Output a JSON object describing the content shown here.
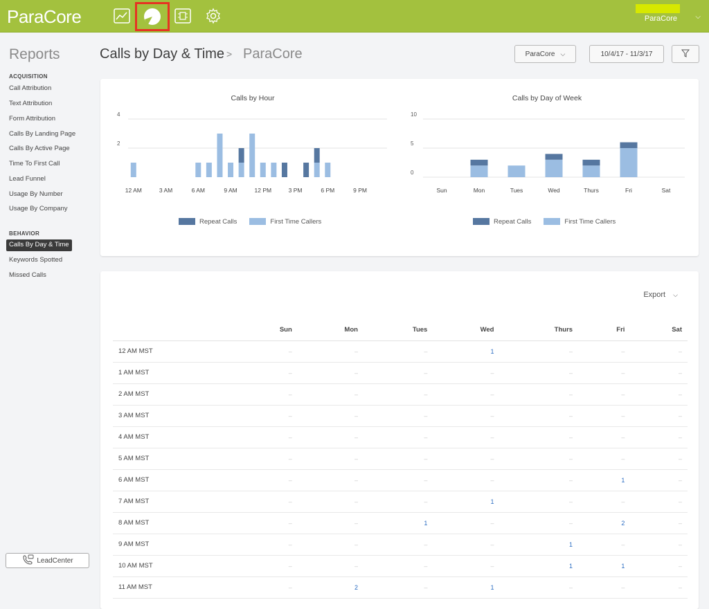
{
  "topbar": {
    "logo": "ParaCore",
    "icons": [
      "chart-line-icon",
      "pie-chart-icon",
      "scripts-icon",
      "gear-icon"
    ],
    "account_name": "ParaCore",
    "accent": "#a3c13e"
  },
  "sidebar": {
    "title": "Reports",
    "sections": [
      {
        "label": "ACQUISITION",
        "items": [
          "Call Attribution",
          "Text Attribution",
          "Form Attribution",
          "Calls By Landing Page",
          "Calls By Active Page",
          "Time To First Call",
          "Lead Funnel",
          "Usage By Number",
          "Usage By Company"
        ]
      },
      {
        "label": "BEHAVIOR",
        "items": [
          "Calls By Day & Time",
          "Keywords Spotted",
          "Missed Calls"
        ]
      }
    ],
    "active_item": "Calls By Day & Time",
    "leadcenter_label": "LeadCenter"
  },
  "header": {
    "title": "Calls by Day & Time",
    "separator": ">",
    "crumb": "ParaCore",
    "company_select": "ParaCore",
    "date_range": "10/4/17 - 11/3/17"
  },
  "colors": {
    "repeat": "#5677a0",
    "first": "#9bbde2",
    "link": "#2a6cc2"
  },
  "chart_data": [
    {
      "type": "bar",
      "title": "Calls by Hour",
      "stacked": true,
      "x_tick_labels": [
        "12 AM",
        "3 AM",
        "6 AM",
        "9 AM",
        "12 PM",
        "3 PM",
        "6 PM",
        "9 PM"
      ],
      "yticks": [
        2,
        4
      ],
      "ylim": [
        0,
        4
      ],
      "categories": [
        "12 AM",
        "1 AM",
        "2 AM",
        "3 AM",
        "4 AM",
        "5 AM",
        "6 AM",
        "7 AM",
        "8 AM",
        "9 AM",
        "10 AM",
        "11 AM",
        "12 PM",
        "1 PM",
        "2 PM",
        "3 PM",
        "4 PM",
        "5 PM",
        "6 PM",
        "7 PM",
        "8 PM",
        "9 PM",
        "10 PM",
        "11 PM"
      ],
      "series": [
        {
          "name": "Repeat Calls",
          "values": [
            0,
            0,
            0,
            0,
            0,
            0,
            0,
            0,
            0,
            0,
            1,
            0,
            0,
            0,
            1,
            0,
            1,
            1,
            0,
            0,
            0,
            0,
            0,
            0
          ]
        },
        {
          "name": "First Time Callers",
          "values": [
            1,
            0,
            0,
            0,
            0,
            0,
            1,
            1,
            3,
            1,
            1,
            3,
            1,
            1,
            0,
            0,
            0,
            1,
            1,
            0,
            0,
            0,
            0,
            0
          ]
        }
      ]
    },
    {
      "type": "bar",
      "title": "Calls by Day of Week",
      "stacked": true,
      "categories": [
        "Sun",
        "Mon",
        "Tues",
        "Wed",
        "Thurs",
        "Fri",
        "Sat"
      ],
      "yticks": [
        0,
        5,
        10
      ],
      "ylim": [
        0,
        10
      ],
      "series": [
        {
          "name": "Repeat Calls",
          "values": [
            0,
            1,
            0,
            1,
            1,
            1,
            0
          ]
        },
        {
          "name": "First Time Callers",
          "values": [
            0,
            2,
            2,
            3,
            2,
            5,
            0
          ]
        }
      ]
    }
  ],
  "table": {
    "export_label": "Export",
    "columns": [
      "",
      "Sun",
      "Mon",
      "Tues",
      "Wed",
      "Thurs",
      "Fri",
      "Sat"
    ],
    "empty": "–",
    "rows": [
      {
        "label": "12 AM MST",
        "cells": [
          "–",
          "–",
          "–",
          "1",
          "–",
          "–",
          "–"
        ]
      },
      {
        "label": "1 AM MST",
        "cells": [
          "–",
          "–",
          "–",
          "–",
          "–",
          "–",
          "–"
        ]
      },
      {
        "label": "2 AM MST",
        "cells": [
          "–",
          "–",
          "–",
          "–",
          "–",
          "–",
          "–"
        ]
      },
      {
        "label": "3 AM MST",
        "cells": [
          "–",
          "–",
          "–",
          "–",
          "–",
          "–",
          "–"
        ]
      },
      {
        "label": "4 AM MST",
        "cells": [
          "–",
          "–",
          "–",
          "–",
          "–",
          "–",
          "–"
        ]
      },
      {
        "label": "5 AM MST",
        "cells": [
          "–",
          "–",
          "–",
          "–",
          "–",
          "–",
          "–"
        ]
      },
      {
        "label": "6 AM MST",
        "cells": [
          "–",
          "–",
          "–",
          "–",
          "–",
          "1",
          "–"
        ]
      },
      {
        "label": "7 AM MST",
        "cells": [
          "–",
          "–",
          "–",
          "1",
          "–",
          "–",
          "–"
        ]
      },
      {
        "label": "8 AM MST",
        "cells": [
          "–",
          "–",
          "1",
          "–",
          "–",
          "2",
          "–"
        ]
      },
      {
        "label": "9 AM MST",
        "cells": [
          "–",
          "–",
          "–",
          "–",
          "1",
          "–",
          "–"
        ]
      },
      {
        "label": "10 AM MST",
        "cells": [
          "–",
          "–",
          "–",
          "–",
          "1",
          "1",
          "–"
        ]
      },
      {
        "label": "11 AM MST",
        "cells": [
          "–",
          "2",
          "–",
          "1",
          "–",
          "–",
          "–"
        ]
      }
    ]
  }
}
